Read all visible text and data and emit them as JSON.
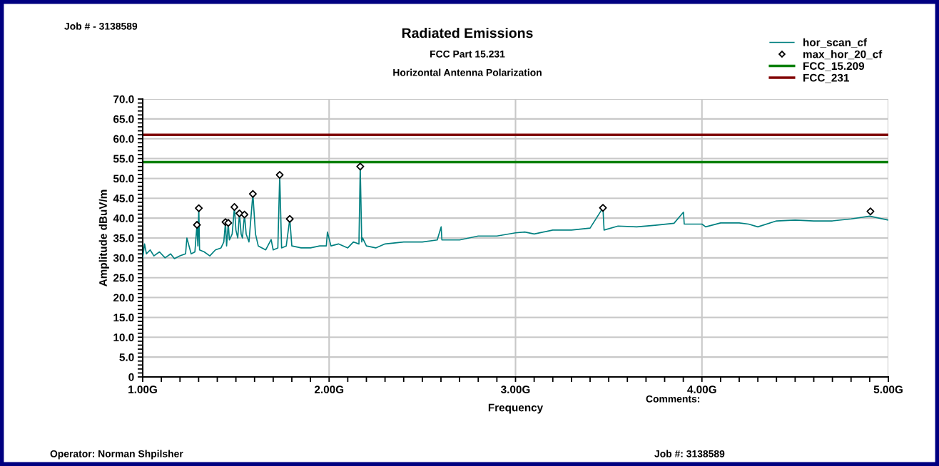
{
  "chart_data": {
    "type": "line",
    "title": "Radiated Emissions",
    "subtitle": "FCC Part 15.231",
    "xlabel": "Frequency",
    "ylabel": "Amplitude dBuV/m",
    "annotations": [
      "Horizontal Antenna Polarization",
      "Job # - 3138589",
      "Comments:",
      "Operator: Norman Shpilsher",
      "Job #: 3138589"
    ],
    "xlim": [
      1,
      5
    ],
    "ylim": [
      0,
      70
    ],
    "xticks": [
      {
        "value": 1,
        "label": "1.00G"
      },
      {
        "value": 1.1,
        "label": null
      },
      {
        "value": 1.2,
        "label": null
      },
      {
        "value": 1.3,
        "label": null
      },
      {
        "value": 1.4,
        "label": null
      },
      {
        "value": 1.5,
        "label": null
      },
      {
        "value": 1.6,
        "label": null
      },
      {
        "value": 1.7,
        "label": null
      },
      {
        "value": 1.8,
        "label": null
      },
      {
        "value": 1.9,
        "label": null
      },
      {
        "value": 2,
        "label": "2.00G"
      },
      {
        "value": 2.1,
        "label": null
      },
      {
        "value": 2.2,
        "label": null
      },
      {
        "value": 2.3,
        "label": null
      },
      {
        "value": 2.4,
        "label": null
      },
      {
        "value": 2.5,
        "label": null
      },
      {
        "value": 2.6,
        "label": null
      },
      {
        "value": 2.7,
        "label": null
      },
      {
        "value": 2.8,
        "label": null
      },
      {
        "value": 2.9,
        "label": null
      },
      {
        "value": 3,
        "label": "3.00G"
      },
      {
        "value": 3.1,
        "label": null
      },
      {
        "value": 3.2,
        "label": null
      },
      {
        "value": 3.3,
        "label": null
      },
      {
        "value": 3.4,
        "label": null
      },
      {
        "value": 3.5,
        "label": null
      },
      {
        "value": 3.6,
        "label": null
      },
      {
        "value": 3.7,
        "label": null
      },
      {
        "value": 3.8,
        "label": null
      },
      {
        "value": 3.9,
        "label": null
      },
      {
        "value": 4,
        "label": "4.00G"
      },
      {
        "value": 4.1,
        "label": null
      },
      {
        "value": 4.2,
        "label": null
      },
      {
        "value": 4.3,
        "label": null
      },
      {
        "value": 4.4,
        "label": null
      },
      {
        "value": 4.5,
        "label": null
      },
      {
        "value": 4.6,
        "label": null
      },
      {
        "value": 4.7,
        "label": null
      },
      {
        "value": 4.8,
        "label": null
      },
      {
        "value": 4.9,
        "label": null
      },
      {
        "value": 5,
        "label": "5.00G"
      }
    ],
    "yticks": [
      0,
      {
        "value": 1,
        "label": null
      },
      {
        "value": 2,
        "label": null
      },
      {
        "value": 3,
        "label": null
      },
      {
        "value": 4,
        "label": null
      },
      {
        "value": 5,
        "label": "5.0"
      },
      {
        "value": 6,
        "label": null
      },
      {
        "value": 7,
        "label": null
      },
      {
        "value": 8,
        "label": null
      },
      {
        "value": 9,
        "label": null
      },
      {
        "value": 10,
        "label": "10.0"
      },
      {
        "value": 11,
        "label": null
      },
      {
        "value": 12,
        "label": null
      },
      {
        "value": 13,
        "label": null
      },
      {
        "value": 14,
        "label": null
      },
      {
        "value": 15,
        "label": "15.0"
      },
      {
        "value": 16,
        "label": null
      },
      {
        "value": 17,
        "label": null
      },
      {
        "value": 18,
        "label": null
      },
      {
        "value": 19,
        "label": null
      },
      {
        "value": 20,
        "label": "20.0"
      },
      {
        "value": 21,
        "label": null
      },
      {
        "value": 22,
        "label": null
      },
      {
        "value": 23,
        "label": null
      },
      {
        "value": 24,
        "label": null
      },
      {
        "value": 25,
        "label": "25.0"
      },
      {
        "value": 26,
        "label": null
      },
      {
        "value": 27,
        "label": null
      },
      {
        "value": 28,
        "label": null
      },
      {
        "value": 29,
        "label": null
      },
      {
        "value": 30,
        "label": "30.0"
      },
      {
        "value": 31,
        "label": null
      },
      {
        "value": 32,
        "label": null
      },
      {
        "value": 33,
        "label": null
      },
      {
        "value": 34,
        "label": null
      },
      {
        "value": 35,
        "label": "35.0"
      },
      {
        "value": 36,
        "label": null
      },
      {
        "value": 37,
        "label": null
      },
      {
        "value": 38,
        "label": null
      },
      {
        "value": 39,
        "label": null
      },
      {
        "value": 40,
        "label": "40.0"
      },
      {
        "value": 41,
        "label": null
      },
      {
        "value": 42,
        "label": null
      },
      {
        "value": 43,
        "label": null
      },
      {
        "value": 44,
        "label": null
      },
      {
        "value": 45,
        "label": "45.0"
      },
      {
        "value": 46,
        "label": null
      },
      {
        "value": 47,
        "label": null
      },
      {
        "value": 48,
        "label": null
      },
      {
        "value": 49,
        "label": null
      },
      {
        "value": 50,
        "label": "50.0"
      },
      {
        "value": 51,
        "label": null
      },
      {
        "value": 52,
        "label": null
      },
      {
        "value": 53,
        "label": null
      },
      {
        "value": 54,
        "label": null
      },
      {
        "value": 55,
        "label": "55.0"
      },
      {
        "value": 56,
        "label": null
      },
      {
        "value": 57,
        "label": null
      },
      {
        "value": 58,
        "label": null
      },
      {
        "value": 59,
        "label": null
      },
      {
        "value": 60,
        "label": "60.0"
      },
      {
        "value": 61,
        "label": null
      },
      {
        "value": 62,
        "label": null
      },
      {
        "value": 63,
        "label": null
      },
      {
        "value": 64,
        "label": null
      },
      {
        "value": 65,
        "label": "65.0"
      },
      {
        "value": 66,
        "label": null
      },
      {
        "value": 67,
        "label": null
      },
      {
        "value": 68,
        "label": null
      },
      {
        "value": 69,
        "label": null
      },
      {
        "value": 70,
        "label": "70.0"
      }
    ],
    "grid": true,
    "legend": "top right",
    "series": [
      {
        "name": "hor_scan_cf",
        "color": "#008080",
        "x": [
          1.0,
          1.01,
          1.02,
          1.04,
          1.06,
          1.09,
          1.12,
          1.15,
          1.17,
          1.2,
          1.23,
          1.237,
          1.26,
          1.28,
          1.291,
          1.296,
          1.301,
          1.305,
          1.33,
          1.36,
          1.39,
          1.42,
          1.435,
          1.444,
          1.45,
          1.459,
          1.465,
          1.48,
          1.492,
          1.5,
          1.51,
          1.519,
          1.528,
          1.535,
          1.546,
          1.555,
          1.57,
          1.591,
          1.605,
          1.62,
          1.66,
          1.689,
          1.7,
          1.725,
          1.735,
          1.745,
          1.77,
          1.789,
          1.8,
          1.85,
          1.9,
          1.95,
          1.985,
          1.991,
          2.01,
          2.05,
          2.1,
          2.13,
          2.16,
          2.167,
          2.175,
          2.18,
          2.2,
          2.25,
          2.3,
          2.4,
          2.5,
          2.58,
          2.601,
          2.605,
          2.7,
          2.8,
          2.9,
          3.0,
          3.05,
          3.1,
          3.2,
          3.3,
          3.4,
          3.469,
          3.475,
          3.55,
          3.65,
          3.75,
          3.85,
          3.901,
          3.905,
          4.0,
          4.02,
          4.1,
          4.2,
          4.25,
          4.3,
          4.4,
          4.5,
          4.6,
          4.7,
          4.8,
          4.9,
          5.0
        ],
        "values": [
          30.0,
          33.5,
          31.0,
          32.0,
          30.5,
          31.5,
          30.0,
          31.0,
          29.8,
          30.5,
          31.0,
          35.0,
          31.0,
          31.5,
          38.3,
          33.0,
          42.5,
          32.0,
          31.5,
          30.5,
          32.0,
          32.5,
          34.0,
          39.0,
          33.0,
          38.8,
          34.5,
          36.0,
          42.8,
          37.0,
          35.0,
          41.2,
          36.0,
          35.0,
          40.9,
          36.0,
          34.0,
          46.1,
          36.0,
          33.0,
          32.0,
          34.6,
          32.0,
          32.5,
          50.9,
          32.5,
          33.0,
          39.8,
          33.0,
          32.5,
          32.5,
          33.0,
          33.0,
          36.5,
          33.0,
          33.5,
          32.5,
          34.0,
          33.5,
          53.0,
          34.0,
          35.0,
          33.0,
          32.5,
          33.5,
          34.0,
          34.0,
          34.5,
          37.8,
          34.5,
          34.5,
          35.5,
          35.5,
          36.3,
          36.5,
          36.0,
          37.0,
          37.0,
          37.5,
          42.6,
          37.0,
          38.0,
          37.8,
          38.2,
          38.7,
          41.5,
          38.5,
          38.5,
          37.8,
          38.8,
          38.8,
          38.5,
          37.8,
          39.3,
          39.5,
          39.3,
          39.3,
          39.8,
          40.5,
          39.5
        ]
      },
      {
        "name": "max_hor_20_cf",
        "type": "scatter",
        "marker": "diamond",
        "color": "#000000",
        "x": [
          1.291,
          1.301,
          1.444,
          1.459,
          1.492,
          1.519,
          1.546,
          1.591,
          1.735,
          1.789,
          2.167,
          3.469,
          4.904
        ],
        "values": [
          38.3,
          42.5,
          39.0,
          38.8,
          42.8,
          41.2,
          40.9,
          46.1,
          50.9,
          39.8,
          53.0,
          42.6,
          41.7
        ]
      },
      {
        "name": "FCC_15.209",
        "type": "line",
        "color": "#008000",
        "x": [
          1,
          5
        ],
        "values": [
          54.1,
          54.1
        ]
      },
      {
        "name": "FCC_231",
        "type": "line",
        "color": "#800000",
        "x": [
          1,
          5
        ],
        "values": [
          61.0,
          61.0
        ]
      }
    ]
  }
}
